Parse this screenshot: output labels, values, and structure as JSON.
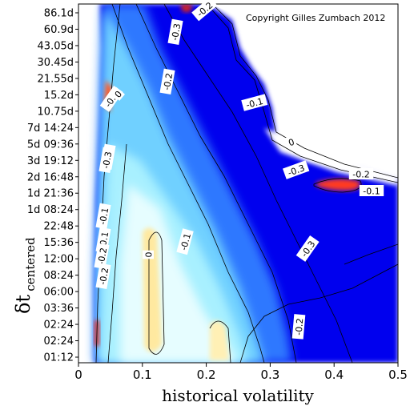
{
  "chart_data": {
    "type": "heatmap",
    "title": "",
    "copyright": "Copyright Gilles Zumbach 2012",
    "xlabel": "historical volatility",
    "ylabel_main": "δt",
    "ylabel_sub": "centered",
    "xlim": [
      0,
      0.5
    ],
    "x_ticks": [
      "0",
      "0.1",
      "0.2",
      "0.3",
      "0.4",
      "0.5"
    ],
    "y_ticks": [
      "86.1d",
      "60.9d",
      "43.05d",
      "30.45d",
      "21.55d",
      "15.2d",
      "10.75d",
      "7d 14:24",
      "5d 09:36",
      "3d 19:12",
      "2d 16:48",
      "1d 21:36",
      "1d 08:24",
      "22:48",
      "15:36",
      "12:00",
      "08:24",
      "06:00",
      "03:36",
      "02:24",
      "02:24",
      "01:12"
    ],
    "contour_labels": [
      "0",
      "-0.1",
      "-0.2",
      "-0.3",
      "-0.1",
      "-0.2",
      "0",
      "-0.1",
      "-0.3",
      "-0.2",
      "-0.1",
      "-0.2",
      "-0.3",
      "-0.1",
      "-0.2",
      "-0.3",
      "0",
      "-0.1",
      "-0.2",
      "-0.2"
    ],
    "colors": {
      "background": "#0000ee",
      "mid": "#2a7dff",
      "light": "#8fe8ff",
      "lightest": "#dffcff",
      "peak": "#ffe9a0",
      "hot": "#ff4020"
    }
  }
}
